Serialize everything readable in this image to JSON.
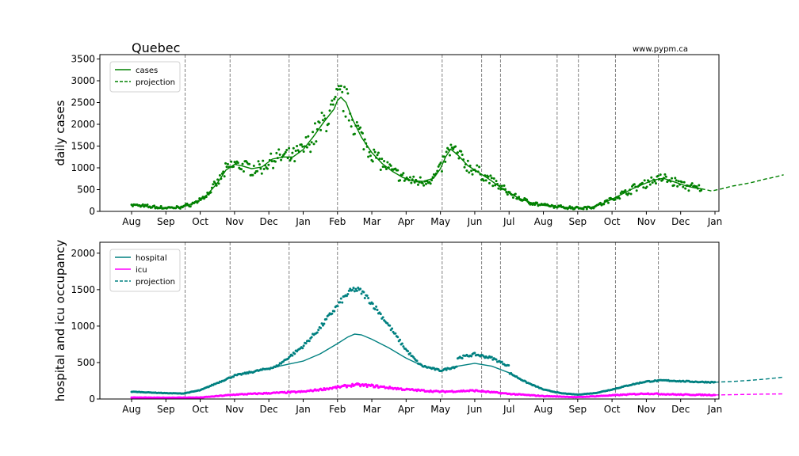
{
  "title": "Quebec",
  "watermark": "www.pypm.ca",
  "colors": {
    "cases": "#008000",
    "hospital": "#008080",
    "icu": "#ff00ff",
    "vline": "#808080"
  },
  "month_ticks": [
    "Aug",
    "Sep",
    "Oct",
    "Nov",
    "Dec",
    "Jan",
    "Feb",
    "Mar",
    "Apr",
    "May",
    "Jun",
    "Jul",
    "Aug",
    "Sep",
    "Oct",
    "Nov",
    "Dec",
    "Jan"
  ],
  "chart_data": [
    {
      "type": "line",
      "ylabel": "daily cases",
      "xlabel": "",
      "x_axis": "months Aug 2020 – Jan 2022",
      "ylim": [
        0,
        3600
      ],
      "yticks": [
        0,
        500,
        1000,
        1500,
        2000,
        2500,
        3000,
        3500
      ],
      "legend": {
        "placement": "upper-left",
        "entries": [
          "cases",
          "projection"
        ]
      },
      "vertical_lines_months": [
        1.56,
        2.87,
        4.59,
        6.0,
        9.05,
        10.2,
        10.75,
        12.4,
        13.02,
        14.1,
        15.35
      ],
      "series": [
        {
          "name": "cases",
          "style": "model-line",
          "x": [
            0,
            0.5,
            1.0,
            1.3,
            1.6,
            1.9,
            2.2,
            2.5,
            2.75,
            3.0,
            3.2,
            3.5,
            3.8,
            4.1,
            4.4,
            4.7,
            5.0,
            5.3,
            5.6,
            5.9,
            6.0,
            6.1,
            6.25,
            6.45,
            6.7,
            7.0,
            7.3,
            7.6,
            7.9,
            8.2,
            8.5,
            8.8,
            9.0,
            9.15,
            9.3,
            9.5,
            9.8,
            10.1,
            10.4,
            10.7,
            11.0,
            11.3,
            11.6,
            11.9,
            12.2,
            12.5,
            12.8,
            13.1,
            13.4,
            13.7,
            14.0,
            14.3,
            14.6,
            14.9,
            15.2,
            15.5,
            15.8,
            16.1,
            16.4,
            16.6
          ],
          "y": [
            150,
            110,
            80,
            85,
            130,
            220,
            380,
            650,
            950,
            1080,
            1050,
            980,
            1020,
            1200,
            1250,
            1250,
            1420,
            1720,
            2050,
            2350,
            2550,
            2620,
            2500,
            2100,
            1700,
            1350,
            1100,
            920,
            780,
            700,
            690,
            760,
            980,
            1250,
            1430,
            1300,
            1050,
            900,
            750,
            580,
            420,
            300,
            210,
            150,
            120,
            100,
            85,
            80,
            95,
            170,
            280,
            400,
            520,
            620,
            720,
            760,
            680,
            600,
            540,
            520
          ]
        },
        {
          "name": "projection",
          "style": "dashed-line",
          "x": [
            16.6,
            16.9,
            17.2,
            17.5,
            17.8,
            18.1,
            18.4,
            18.7,
            19.0
          ],
          "y": [
            520,
            470,
            520,
            580,
            620,
            670,
            730,
            780,
            840
          ]
        }
      ]
    },
    {
      "type": "line",
      "ylabel": "hospital and icu occupancy",
      "xlabel": "",
      "x_axis": "months Aug 2020 – Jan 2022",
      "ylim": [
        0,
        2150
      ],
      "yticks": [
        0,
        500,
        1000,
        1500,
        2000
      ],
      "legend": {
        "placement": "upper-left",
        "entries": [
          "hospital",
          "icu",
          "projection"
        ]
      },
      "vertical_lines_months": [
        1.56,
        2.87,
        4.59,
        6.0,
        9.05,
        10.2,
        10.75,
        12.4,
        13.02,
        14.1,
        15.35
      ],
      "series": [
        {
          "name": "hospital",
          "style": "model-line",
          "x": [
            0,
            0.5,
            1.0,
            1.5,
            2.0,
            2.5,
            3.0,
            3.5,
            4.0,
            4.5,
            5.0,
            5.5,
            6.0,
            6.3,
            6.5,
            6.7,
            7.0,
            7.5,
            8.0,
            8.5,
            9.0,
            9.5,
            10.0,
            10.5,
            11.0,
            11.5,
            12.0,
            12.5,
            13.0,
            13.5,
            14.0,
            14.5,
            15.0,
            15.5,
            16.0,
            16.5,
            17.0
          ],
          "y": [
            100,
            90,
            80,
            75,
            120,
            220,
            320,
            370,
            420,
            470,
            520,
            620,
            760,
            850,
            890,
            880,
            820,
            700,
            560,
            450,
            390,
            450,
            490,
            450,
            360,
            230,
            130,
            80,
            60,
            80,
            130,
            190,
            240,
            255,
            245,
            235,
            230
          ]
        },
        {
          "name": "icu",
          "style": "model-line",
          "x": [
            0,
            1.0,
            2.0,
            3.0,
            4.0,
            5.0,
            6.0,
            6.5,
            7.0,
            8.0,
            9.0,
            10.0,
            11.0,
            12.0,
            13.0,
            14.0,
            15.0,
            16.0,
            17.0
          ],
          "y": [
            20,
            18,
            20,
            60,
            80,
            100,
            160,
            195,
            180,
            130,
            100,
            115,
            70,
            40,
            25,
            50,
            75,
            60,
            55
          ]
        },
        {
          "name": "projection",
          "style": "dashed-line",
          "x": [
            17.0,
            17.5,
            18.0,
            18.5,
            19.0
          ],
          "y": [
            230,
            240,
            255,
            275,
            300
          ]
        }
      ]
    }
  ]
}
